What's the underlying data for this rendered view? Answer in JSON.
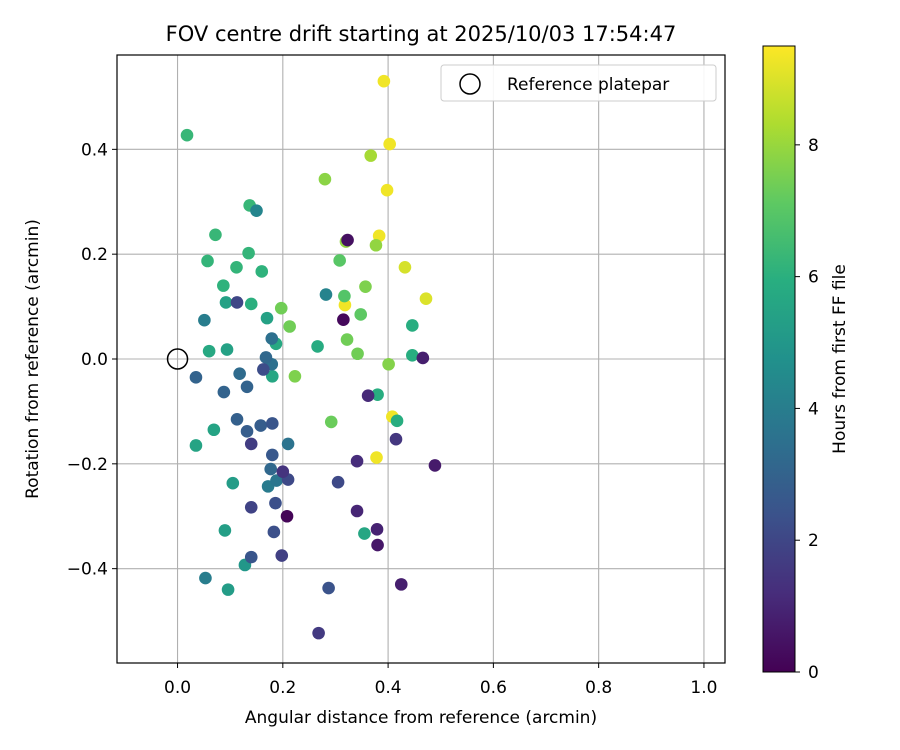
{
  "chart_data": {
    "type": "scatter",
    "title": "FOV centre drift starting at 2025/10/03 17:54:47",
    "xlabel": "Angular distance from reference (arcmin)",
    "ylabel": "Rotation from reference (arcmin)",
    "xlim": [
      -0.115,
      1.04
    ],
    "ylim": [
      -0.58,
      0.58
    ],
    "xticks": [
      0.0,
      0.2,
      0.4,
      0.6,
      0.8,
      1.0
    ],
    "xtick_labels": [
      "0.0",
      "0.2",
      "0.4",
      "0.6",
      "0.8",
      "1.0"
    ],
    "yticks": [
      -0.4,
      -0.2,
      0.0,
      0.2,
      0.4
    ],
    "ytick_labels": [
      "−0.4",
      "−0.2",
      "0.0",
      "0.2",
      "0.4"
    ],
    "grid": true,
    "legend": {
      "position": "top-right",
      "label": "Reference platepar"
    },
    "reference_point": {
      "x": 0.0,
      "y": 0.0
    },
    "colorbar": {
      "label": "Hours from first FF file",
      "min": 0,
      "max": 9.5,
      "ticks": [
        0,
        2,
        4,
        6,
        8
      ],
      "tick_labels": [
        "0",
        "2",
        "4",
        "6",
        "8"
      ],
      "colormap": "viridis"
    },
    "points": [
      {
        "x": 0.392,
        "y": 0.53,
        "h": 9.3
      },
      {
        "x": 0.403,
        "y": 0.41,
        "h": 9.3
      },
      {
        "x": 0.398,
        "y": 0.322,
        "h": 9.3
      },
      {
        "x": 0.383,
        "y": 0.235,
        "h": 9.3
      },
      {
        "x": 0.432,
        "y": 0.175,
        "h": 8.9
      },
      {
        "x": 0.472,
        "y": 0.115,
        "h": 9.0
      },
      {
        "x": 0.318,
        "y": 0.103,
        "h": 9.3
      },
      {
        "x": 0.408,
        "y": -0.11,
        "h": 9.3
      },
      {
        "x": 0.378,
        "y": -0.188,
        "h": 9.3
      },
      {
        "x": 0.367,
        "y": 0.388,
        "h": 8.2
      },
      {
        "x": 0.28,
        "y": 0.343,
        "h": 7.8
      },
      {
        "x": 0.377,
        "y": 0.217,
        "h": 7.9
      },
      {
        "x": 0.32,
        "y": 0.224,
        "h": 7.9
      },
      {
        "x": 0.357,
        "y": 0.138,
        "h": 7.6
      },
      {
        "x": 0.197,
        "y": 0.097,
        "h": 7.4
      },
      {
        "x": 0.213,
        "y": 0.062,
        "h": 7.4
      },
      {
        "x": 0.223,
        "y": -0.033,
        "h": 7.6
      },
      {
        "x": 0.322,
        "y": 0.037,
        "h": 7.4
      },
      {
        "x": 0.342,
        "y": 0.01,
        "h": 7.4
      },
      {
        "x": 0.401,
        "y": -0.01,
        "h": 7.7
      },
      {
        "x": 0.292,
        "y": -0.12,
        "h": 7.3
      },
      {
        "x": 0.348,
        "y": 0.085,
        "h": 7.1
      },
      {
        "x": 0.308,
        "y": 0.188,
        "h": 7.0
      },
      {
        "x": 0.317,
        "y": 0.12,
        "h": 6.9
      },
      {
        "x": 0.018,
        "y": 0.427,
        "h": 6.3
      },
      {
        "x": 0.137,
        "y": 0.293,
        "h": 6.3
      },
      {
        "x": 0.072,
        "y": 0.237,
        "h": 6.3
      },
      {
        "x": 0.135,
        "y": 0.202,
        "h": 6.2
      },
      {
        "x": 0.057,
        "y": 0.187,
        "h": 6.2
      },
      {
        "x": 0.112,
        "y": 0.175,
        "h": 6.2
      },
      {
        "x": 0.16,
        "y": 0.167,
        "h": 6.1
      },
      {
        "x": 0.087,
        "y": 0.14,
        "h": 6.1
      },
      {
        "x": 0.14,
        "y": 0.105,
        "h": 6.0
      },
      {
        "x": 0.446,
        "y": 0.064,
        "h": 5.9
      },
      {
        "x": 0.446,
        "y": 0.007,
        "h": 5.9
      },
      {
        "x": 0.266,
        "y": 0.024,
        "h": 5.8
      },
      {
        "x": 0.187,
        "y": 0.029,
        "h": 5.7
      },
      {
        "x": 0.18,
        "y": -0.033,
        "h": 5.6
      },
      {
        "x": 0.06,
        "y": 0.015,
        "h": 5.7
      },
      {
        "x": 0.38,
        "y": -0.068,
        "h": 5.9
      },
      {
        "x": 0.417,
        "y": -0.118,
        "h": 5.9
      },
      {
        "x": 0.355,
        "y": -0.333,
        "h": 5.6
      },
      {
        "x": 0.035,
        "y": -0.165,
        "h": 5.5
      },
      {
        "x": 0.069,
        "y": -0.135,
        "h": 5.5
      },
      {
        "x": 0.092,
        "y": 0.108,
        "h": 5.4
      },
      {
        "x": 0.094,
        "y": 0.018,
        "h": 5.4
      },
      {
        "x": 0.17,
        "y": 0.078,
        "h": 5.4
      },
      {
        "x": 0.09,
        "y": -0.327,
        "h": 5.3
      },
      {
        "x": 0.105,
        "y": -0.237,
        "h": 5.2
      },
      {
        "x": 0.096,
        "y": -0.44,
        "h": 5.2
      },
      {
        "x": 0.128,
        "y": -0.393,
        "h": 5.0
      },
      {
        "x": 0.15,
        "y": 0.283,
        "h": 4.3
      },
      {
        "x": 0.282,
        "y": 0.123,
        "h": 4.2
      },
      {
        "x": 0.051,
        "y": 0.074,
        "h": 4.0
      },
      {
        "x": 0.053,
        "y": -0.418,
        "h": 4.0
      },
      {
        "x": 0.172,
        "y": -0.243,
        "h": 3.9
      },
      {
        "x": 0.188,
        "y": -0.232,
        "h": 3.7
      },
      {
        "x": 0.21,
        "y": -0.162,
        "h": 3.6
      },
      {
        "x": 0.179,
        "y": -0.01,
        "h": 3.5
      },
      {
        "x": 0.179,
        "y": 0.039,
        "h": 3.5
      },
      {
        "x": 0.118,
        "y": -0.028,
        "h": 3.3
      },
      {
        "x": 0.168,
        "y": 0.003,
        "h": 3.2
      },
      {
        "x": 0.177,
        "y": -0.21,
        "h": 3.2
      },
      {
        "x": 0.035,
        "y": -0.035,
        "h": 3.0
      },
      {
        "x": 0.132,
        "y": -0.053,
        "h": 3.0
      },
      {
        "x": 0.088,
        "y": -0.063,
        "h": 3.0
      },
      {
        "x": 0.113,
        "y": -0.115,
        "h": 2.9
      },
      {
        "x": 0.158,
        "y": -0.127,
        "h": 2.8
      },
      {
        "x": 0.132,
        "y": -0.138,
        "h": 2.8
      },
      {
        "x": 0.18,
        "y": -0.183,
        "h": 2.6
      },
      {
        "x": 0.18,
        "y": -0.123,
        "h": 2.5
      },
      {
        "x": 0.14,
        "y": -0.378,
        "h": 2.5
      },
      {
        "x": 0.287,
        "y": -0.437,
        "h": 2.4
      },
      {
        "x": 0.183,
        "y": -0.33,
        "h": 2.3
      },
      {
        "x": 0.186,
        "y": -0.275,
        "h": 2.3
      },
      {
        "x": 0.163,
        "y": -0.02,
        "h": 2.2
      },
      {
        "x": 0.21,
        "y": -0.23,
        "h": 2.1
      },
      {
        "x": 0.305,
        "y": -0.235,
        "h": 2.1
      },
      {
        "x": 0.113,
        "y": 0.108,
        "h": 2.0
      },
      {
        "x": 0.14,
        "y": -0.283,
        "h": 1.9
      },
      {
        "x": 0.198,
        "y": -0.375,
        "h": 1.8
      },
      {
        "x": 0.14,
        "y": -0.162,
        "h": 1.7
      },
      {
        "x": 0.268,
        "y": -0.523,
        "h": 1.6
      },
      {
        "x": 0.415,
        "y": -0.153,
        "h": 1.5
      },
      {
        "x": 0.2,
        "y": -0.215,
        "h": 1.4
      },
      {
        "x": 0.341,
        "y": -0.195,
        "h": 1.2
      },
      {
        "x": 0.362,
        "y": -0.07,
        "h": 1.1
      },
      {
        "x": 0.341,
        "y": -0.29,
        "h": 1.0
      },
      {
        "x": 0.379,
        "y": -0.325,
        "h": 0.9
      },
      {
        "x": 0.425,
        "y": -0.43,
        "h": 0.8
      },
      {
        "x": 0.466,
        "y": 0.002,
        "h": 0.8
      },
      {
        "x": 0.489,
        "y": -0.203,
        "h": 0.7
      },
      {
        "x": 0.38,
        "y": -0.355,
        "h": 0.6
      },
      {
        "x": 0.323,
        "y": 0.227,
        "h": 0.4
      },
      {
        "x": 0.315,
        "y": 0.075,
        "h": 0.2
      },
      {
        "x": 0.208,
        "y": -0.3,
        "h": 0.1
      }
    ]
  }
}
